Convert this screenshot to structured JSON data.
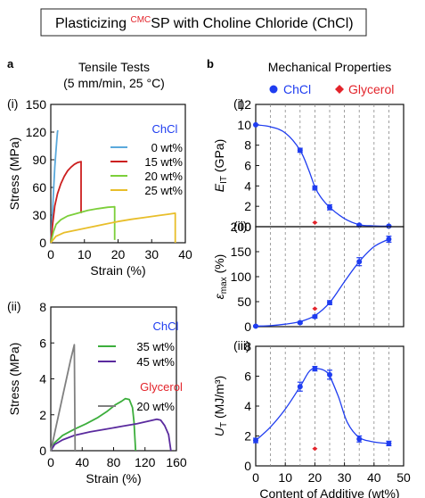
{
  "figure": {
    "title_prefix": "Plasticizing ",
    "title_sup": "CMC",
    "title_rest": "SP with Choline Chloride (ChCl)",
    "panel_a_letter": "a",
    "panel_b_letter": "b",
    "panel_a_heading_1": "Tensile Tests",
    "panel_a_heading_2": "(5 mm/min, 25 °C)",
    "panel_b_heading": "Mechanical Properties",
    "legend_chcl": "ChCl",
    "legend_glycerol": "Glycerol"
  },
  "colors": {
    "chcl": "#1f3df0",
    "glycerol": "#e3242b",
    "grid": "#888888",
    "s0": "#5aa9dc",
    "s15": "#cc1f1f",
    "s20": "#7ccf3a",
    "s25": "#e8be2a",
    "s35": "#3cae3c",
    "s45": "#5a2a9e",
    "sgly": "#808080"
  },
  "chart_data": [
    {
      "id": "a-i",
      "type": "line",
      "panel_label": "(i)",
      "xlabel": "Strain (%)",
      "ylabel": "Stress (MPa)",
      "xlim": [
        0,
        40
      ],
      "ylim": [
        0,
        150
      ],
      "xticks": [
        "0",
        "10",
        "20",
        "30",
        "40"
      ],
      "yticks": [
        "0",
        "30",
        "60",
        "90",
        "120",
        "150"
      ],
      "legend_header": "ChCl",
      "series": [
        {
          "name": "0 wt%",
          "color_key": "s0",
          "points": [
            [
              0,
              0
            ],
            [
              0.3,
              18
            ],
            [
              0.6,
              40
            ],
            [
              0.9,
              62
            ],
            [
              1.2,
              82
            ],
            [
              1.5,
              98
            ],
            [
              1.8,
              112
            ],
            [
              2.0,
              120
            ],
            [
              2.1,
              122
            ]
          ]
        },
        {
          "name": "15 wt%",
          "color_key": "s15",
          "points": [
            [
              0,
              0
            ],
            [
              0.6,
              22
            ],
            [
              1.2,
              40
            ],
            [
              2,
              53
            ],
            [
              3,
              64
            ],
            [
              4,
              72
            ],
            [
              5,
              78
            ],
            [
              6,
              82
            ],
            [
              7,
              85
            ],
            [
              8,
              87
            ],
            [
              9,
              88
            ],
            [
              9,
              32
            ]
          ]
        },
        {
          "name": "20 wt%",
          "color_key": "s20",
          "points": [
            [
              0,
              0
            ],
            [
              0.8,
              12
            ],
            [
              1.6,
              20
            ],
            [
              3,
              25
            ],
            [
              5,
              29
            ],
            [
              8,
              32
            ],
            [
              11,
              35
            ],
            [
              14,
              37
            ],
            [
              17,
              38.5
            ],
            [
              19,
              39
            ],
            [
              19,
              3
            ]
          ]
        },
        {
          "name": "25 wt%",
          "color_key": "s25",
          "points": [
            [
              0,
              0
            ],
            [
              1.5,
              7
            ],
            [
              4,
              11
            ],
            [
              8,
              14
            ],
            [
              12,
              17
            ],
            [
              16,
              20
            ],
            [
              20,
              23
            ],
            [
              24,
              25.5
            ],
            [
              28,
              27.5
            ],
            [
              32,
              29.5
            ],
            [
              35,
              31
            ],
            [
              37,
              32
            ],
            [
              37,
              0
            ]
          ]
        }
      ]
    },
    {
      "id": "a-ii",
      "type": "line",
      "panel_label": "(ii)",
      "xlabel": "Strain (%)",
      "ylabel": "Stress (MPa)",
      "xlim": [
        0,
        160
      ],
      "ylim": [
        0,
        8
      ],
      "xticks": [
        "0",
        "40",
        "80",
        "120",
        "160"
      ],
      "yticks": [
        "0",
        "2",
        "4",
        "6",
        "8"
      ],
      "legend_header": "ChCl",
      "legend_header_2": "Glycerol",
      "series": [
        {
          "name": "35 wt%",
          "color_key": "s35",
          "points": [
            [
              0,
              0
            ],
            [
              5,
              0.45
            ],
            [
              15,
              0.85
            ],
            [
              30,
              1.2
            ],
            [
              45,
              1.5
            ],
            [
              60,
              1.85
            ],
            [
              72,
              2.2
            ],
            [
              82,
              2.55
            ],
            [
              90,
              2.75
            ],
            [
              95,
              2.9
            ],
            [
              100,
              2.85
            ],
            [
              104,
              2.4
            ],
            [
              106,
              1.6
            ],
            [
              108,
              0
            ]
          ]
        },
        {
          "name": "45 wt%",
          "color_key": "s45",
          "points": [
            [
              0,
              0
            ],
            [
              5,
              0.35
            ],
            [
              15,
              0.6
            ],
            [
              30,
              0.85
            ],
            [
              50,
              1.05
            ],
            [
              70,
              1.2
            ],
            [
              90,
              1.35
            ],
            [
              110,
              1.5
            ],
            [
              125,
              1.65
            ],
            [
              135,
              1.75
            ],
            [
              140,
              1.7
            ],
            [
              145,
              1.4
            ],
            [
              150,
              0.9
            ],
            [
              153,
              0
            ]
          ]
        },
        {
          "name": "20 wt%",
          "color_key": "sgly",
          "points": [
            [
              0,
              0
            ],
            [
              5,
              1.0
            ],
            [
              10,
              2.0
            ],
            [
              15,
              3.0
            ],
            [
              20,
              4.0
            ],
            [
              25,
              5.0
            ],
            [
              30,
              5.9
            ],
            [
              31,
              0
            ]
          ]
        }
      ]
    },
    {
      "id": "b-i",
      "type": "scatter",
      "panel_label": "(i)",
      "ylabel_main": "E",
      "ylabel_sub": "IT",
      "ylabel_unit": " (GPa)",
      "xlim": [
        0,
        50
      ],
      "ylim": [
        0,
        12
      ],
      "yticks": [
        "0",
        "2",
        "4",
        "6",
        "8",
        "10",
        "12"
      ],
      "grid_x": [
        5,
        10,
        15,
        20,
        25,
        30,
        35,
        40,
        45
      ],
      "chcl_points": [
        [
          0,
          10,
          0
        ],
        [
          15,
          7.5,
          0.2
        ],
        [
          20,
          3.8,
          0.2
        ],
        [
          25,
          1.9,
          0.25
        ],
        [
          35,
          0.15,
          0.05
        ],
        [
          45,
          0.05,
          0.05
        ]
      ],
      "chcl_fit": [
        [
          0,
          10
        ],
        [
          5,
          9.8
        ],
        [
          10,
          9.2
        ],
        [
          15,
          7.5
        ],
        [
          18,
          5.5
        ],
        [
          20,
          3.9
        ],
        [
          22,
          2.9
        ],
        [
          25,
          1.9
        ],
        [
          30,
          0.8
        ],
        [
          35,
          0.2
        ],
        [
          40,
          0.08
        ],
        [
          45,
          0.05
        ]
      ],
      "glycerol_points": [
        [
          20,
          0.4,
          0
        ]
      ]
    },
    {
      "id": "b-ii",
      "type": "scatter",
      "panel_label": "(ii)",
      "ylabel_main": "ε",
      "ylabel_sub": "max",
      "ylabel_unit": " (%)",
      "xlim": [
        0,
        50
      ],
      "ylim": [
        0,
        200
      ],
      "yticks": [
        "0",
        "50",
        "100",
        "150",
        "200"
      ],
      "grid_x": [
        5,
        10,
        15,
        20,
        25,
        30,
        35,
        40,
        45
      ],
      "chcl_points": [
        [
          0,
          1,
          1
        ],
        [
          15,
          8,
          2
        ],
        [
          20,
          20,
          3
        ],
        [
          25,
          48,
          4
        ],
        [
          35,
          130,
          8
        ],
        [
          45,
          175,
          6
        ]
      ],
      "chcl_fit": [
        [
          0,
          1
        ],
        [
          5,
          2
        ],
        [
          10,
          5
        ],
        [
          15,
          10
        ],
        [
          20,
          22
        ],
        [
          25,
          48
        ],
        [
          30,
          90
        ],
        [
          35,
          130
        ],
        [
          40,
          160
        ],
        [
          45,
          175
        ]
      ],
      "glycerol_points": [
        [
          20,
          36,
          0
        ]
      ]
    },
    {
      "id": "b-iii",
      "type": "scatter",
      "panel_label": "(iii)",
      "ylabel_main": "U",
      "ylabel_sub": "T",
      "ylabel_unit": " (MJ/m³)",
      "xlabel": "Content of Additive (wt%)",
      "xlim": [
        0,
        50
      ],
      "ylim": [
        0,
        8
      ],
      "xticks": [
        "0",
        "10",
        "20",
        "30",
        "40",
        "50"
      ],
      "yticks": [
        "0",
        "2",
        "4",
        "6",
        "8"
      ],
      "grid_x": [
        5,
        10,
        15,
        20,
        25,
        30,
        35,
        40,
        45
      ],
      "chcl_points": [
        [
          0,
          1.7,
          0.15
        ],
        [
          15,
          5.3,
          0.3
        ],
        [
          20,
          6.5,
          0.15
        ],
        [
          25,
          6.1,
          0.3
        ],
        [
          35,
          1.8,
          0.2
        ],
        [
          45,
          1.5,
          0.15
        ]
      ],
      "chcl_fit": [
        [
          0,
          1.7
        ],
        [
          5,
          2.6
        ],
        [
          10,
          3.8
        ],
        [
          15,
          5.3
        ],
        [
          18,
          6.3
        ],
        [
          20,
          6.5
        ],
        [
          23,
          6.4
        ],
        [
          25,
          6.0
        ],
        [
          28,
          4.6
        ],
        [
          31,
          2.9
        ],
        [
          35,
          1.9
        ],
        [
          40,
          1.6
        ],
        [
          45,
          1.5
        ]
      ],
      "glycerol_points": [
        [
          20,
          1.15,
          0
        ]
      ]
    }
  ]
}
